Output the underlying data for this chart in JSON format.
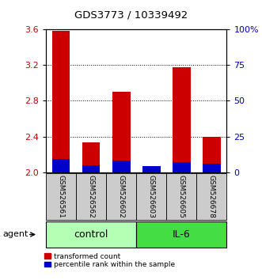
{
  "title": "GDS3773 / 10339492",
  "samples": [
    "GSM526561",
    "GSM526562",
    "GSM526602",
    "GSM526603",
    "GSM526605",
    "GSM526678"
  ],
  "red_values": [
    3.58,
    2.33,
    2.9,
    2.05,
    3.18,
    2.4
  ],
  "blue_percentile": [
    9,
    5,
    8,
    4,
    7,
    6
  ],
  "ymin": 2.0,
  "ymax": 3.6,
  "y_ticks": [
    2.0,
    2.4,
    2.8,
    3.2,
    3.6
  ],
  "y2_ticks": [
    0,
    25,
    50,
    75,
    100
  ],
  "y2_tick_labels": [
    "0",
    "25",
    "50",
    "75",
    "100%"
  ],
  "groups": [
    {
      "label": "control",
      "indices": [
        0,
        1,
        2
      ],
      "color": "#b3ffb3"
    },
    {
      "label": "IL-6",
      "indices": [
        3,
        4,
        5
      ],
      "color": "#44dd44"
    }
  ],
  "bar_width": 0.6,
  "red_color": "#cc0000",
  "blue_color": "#0000cc",
  "ax_label_red": "#cc0000",
  "ax_label_blue": "#0000bb",
  "background_samples": "#cccccc",
  "agent_label": "agent",
  "legend_red": "transformed count",
  "legend_blue": "percentile rank within the sample"
}
